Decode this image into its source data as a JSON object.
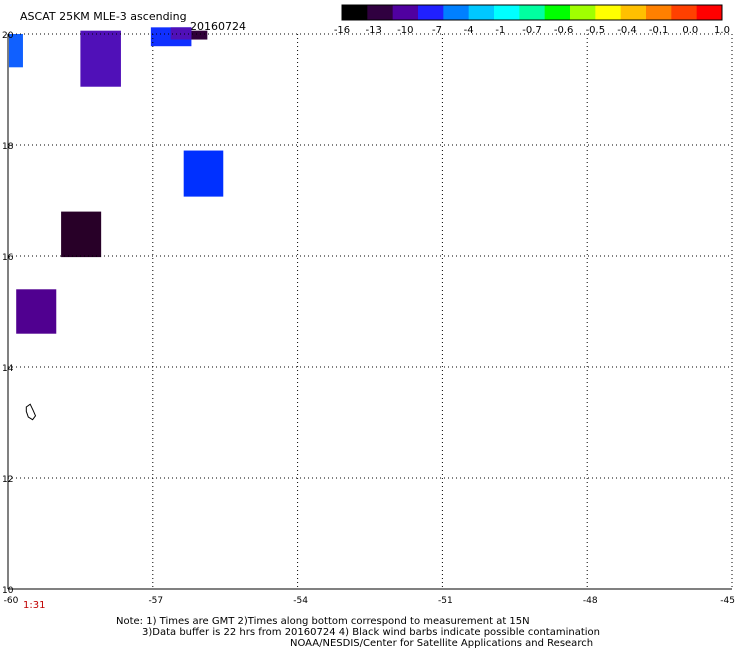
{
  "header": {
    "title": "ASCAT 25KM MLE-3 ascending",
    "date": "20160724"
  },
  "colorbar": {
    "colors": [
      "#000000",
      "#300040",
      "#5000a0",
      "#2020ff",
      "#0080ff",
      "#00c8ff",
      "#00ffff",
      "#00ffa0",
      "#00ff00",
      "#a0ff00",
      "#ffff00",
      "#ffc000",
      "#ff8000",
      "#ff4000",
      "#ff0000"
    ],
    "labels": [
      "-16",
      "-13",
      "-10",
      "-7",
      "-4",
      "-1",
      "-0.7",
      "-0.6",
      "-0.5",
      "-0.4",
      "-0.1",
      "0.0",
      "1.0"
    ]
  },
  "map": {
    "lon_range": [
      -60,
      -45
    ],
    "lat_range": [
      10,
      20
    ],
    "lon_ticks": [
      -60,
      -57,
      -54,
      -51,
      -48,
      -45
    ],
    "lat_ticks": [
      10,
      12,
      14,
      16,
      18,
      20
    ],
    "lon_tick_labels": [
      "-60",
      "-57",
      "-54",
      "-51",
      "-48",
      "-45"
    ],
    "lat_tick_labels": [
      "10",
      "12",
      "14",
      "16",
      "18",
      "20"
    ],
    "grid": "dotted",
    "cells": [
      {
        "lon0": -59.98,
        "lon1": -59.69,
        "lat0": 19.4,
        "lat1": 20.0,
        "color": "#1060ff"
      },
      {
        "lon0": -58.5,
        "lon1": -57.66,
        "lat0": 19.05,
        "lat1": 20.06,
        "color": "#5010b8"
      },
      {
        "lon0": -57.04,
        "lon1": -56.2,
        "lat0": 19.78,
        "lat1": 20.12,
        "color": "#1030ff"
      },
      {
        "lon0": -56.63,
        "lon1": -56.2,
        "lat0": 19.9,
        "lat1": 20.12,
        "color": "#5010b8"
      },
      {
        "lon0": -56.2,
        "lon1": -55.87,
        "lat0": 19.9,
        "lat1": 20.06,
        "color": "#300038"
      },
      {
        "lon0": -56.36,
        "lon1": -55.54,
        "lat0": 17.07,
        "lat1": 17.9,
        "color": "#0030ff"
      },
      {
        "lon0": -58.9,
        "lon1": -58.07,
        "lat0": 15.98,
        "lat1": 16.8,
        "color": "#280028"
      },
      {
        "lon0": -59.83,
        "lon1": -59.0,
        "lat0": 14.6,
        "lat1": 15.4,
        "color": "#500090"
      }
    ],
    "island_outline": [
      [
        -59.62,
        13.28
      ],
      [
        -59.54,
        13.33
      ],
      [
        -59.48,
        13.22
      ],
      [
        -59.43,
        13.12
      ],
      [
        -59.49,
        13.05
      ],
      [
        -59.58,
        13.1
      ],
      [
        -59.62,
        13.2
      ]
    ]
  },
  "time_label": "1:31",
  "footer": {
    "line1": "Note: 1) Times are GMT 2)Times along bottom correspond to measurement at 15N",
    "line2": "3)Data buffer is 22 hrs from 20160724 4) Black wind barbs indicate possible contamination",
    "line3": "NOAA/NESDIS/Center for Satellite Applications and Research"
  }
}
